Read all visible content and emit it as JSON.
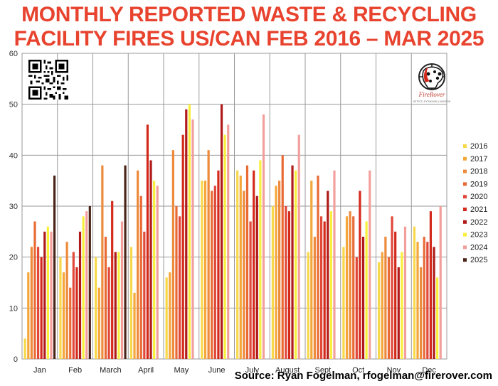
{
  "title": {
    "line1": "MONTHLY REPORTED WASTE & RECYCLING",
    "line2": "FACILITY FIRES US/CAN FEB 2016 – MAR 2025"
  },
  "source": "Source: Ryan Fogelman, rfogelman@firerover.com",
  "logo": {
    "name": "FireRover",
    "tagline": "DETECT | EXTINGUISH | MONITOR"
  },
  "chart_data": {
    "type": "bar",
    "title": "MONTHLY REPORTED WASTE & RECYCLING FACILITY FIRES US/CAN FEB 2016 – MAR 2025",
    "xlabel": "",
    "ylabel": "",
    "ylim": [
      0,
      60
    ],
    "yticks": [
      0,
      10,
      20,
      30,
      40,
      50,
      60
    ],
    "grid": true,
    "legend": "right",
    "categories": [
      "Jan",
      "Feb",
      "March",
      "April",
      "May",
      "June",
      "July",
      "August",
      "Sept",
      "Oct",
      "Nov",
      "Dec"
    ],
    "series": [
      {
        "name": "2016",
        "color": "#f7d84a",
        "values": [
          4,
          20,
          20,
          22,
          16,
          35,
          37,
          30,
          21,
          22,
          19,
          26
        ]
      },
      {
        "name": "2017",
        "color": "#f4a63a",
        "values": [
          17,
          17,
          14,
          13,
          17,
          35,
          36,
          34,
          35,
          28,
          21,
          23
        ]
      },
      {
        "name": "2018",
        "color": "#ed8a3b",
        "values": [
          22,
          23,
          38,
          37,
          41,
          41,
          33,
          35,
          24,
          29,
          24,
          18
        ]
      },
      {
        "name": "2019",
        "color": "#e96a35",
        "values": [
          27,
          14,
          24,
          32,
          30,
          33,
          38,
          40,
          36,
          28,
          20,
          24
        ]
      },
      {
        "name": "2020",
        "color": "#e0483a",
        "values": [
          22,
          21,
          18,
          25,
          28,
          34,
          27,
          30,
          28,
          20,
          28,
          23
        ]
      },
      {
        "name": "2021",
        "color": "#d42a1c",
        "values": [
          20,
          18,
          31,
          46,
          44,
          37,
          37,
          29,
          27,
          33,
          25,
          29
        ]
      },
      {
        "name": "2022",
        "color": "#b01a1a",
        "values": [
          25,
          25,
          21,
          39,
          49,
          50,
          32,
          38,
          33,
          24,
          18,
          22
        ]
      },
      {
        "name": "2023",
        "color": "#f8ef3c",
        "values": [
          26,
          28,
          21,
          35,
          50,
          44,
          39,
          37,
          29,
          27,
          21,
          16
        ]
      },
      {
        "name": "2024",
        "color": "#f29f9c",
        "values": [
          25,
          29,
          27,
          34,
          47,
          46,
          48,
          44,
          37,
          37,
          26,
          30
        ]
      },
      {
        "name": "2025",
        "color": "#4a2418",
        "values": [
          36,
          30,
          38,
          null,
          null,
          null,
          null,
          null,
          null,
          null,
          null,
          null
        ]
      }
    ]
  }
}
